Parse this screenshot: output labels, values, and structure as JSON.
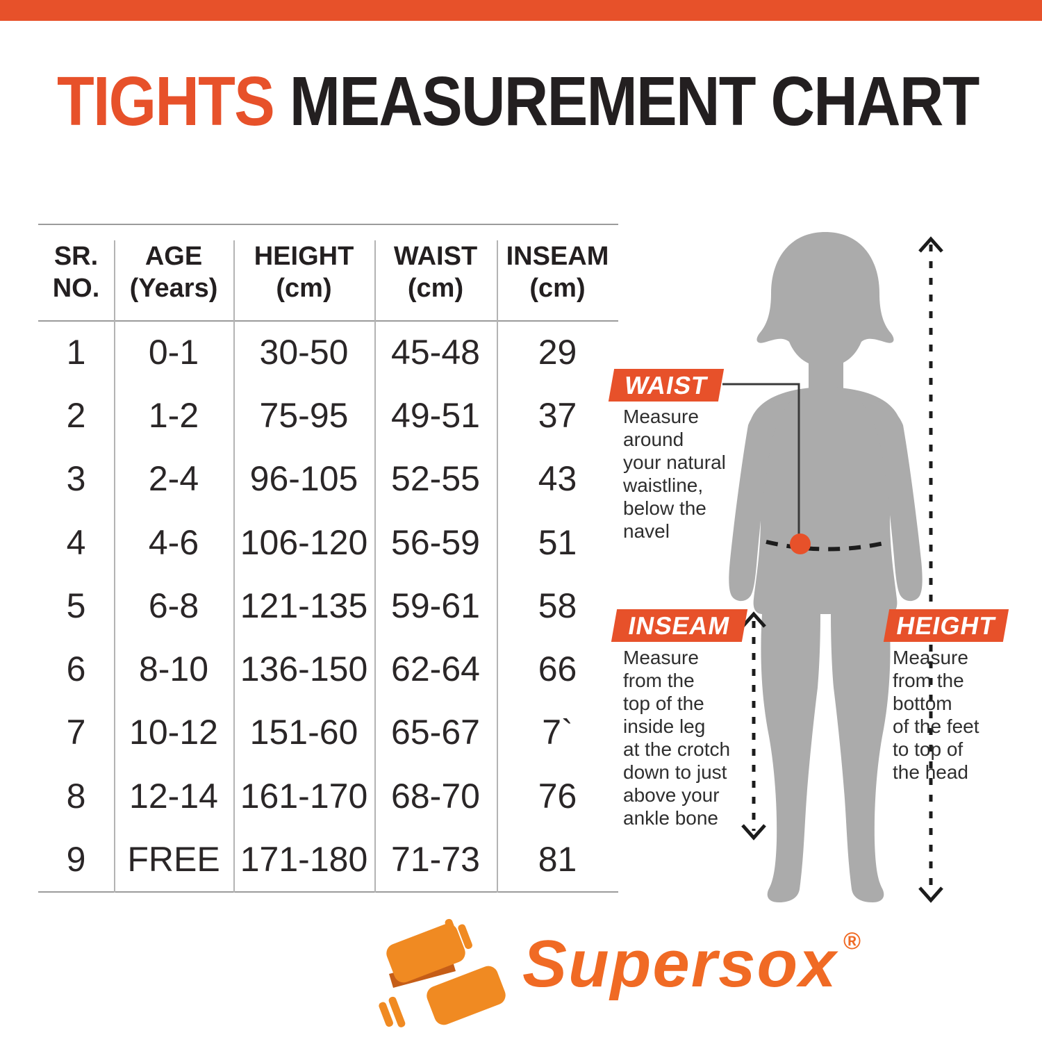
{
  "page": {
    "title_accent": "TIGHTS",
    "title_rest": " MEASUREMENT CHART"
  },
  "table": {
    "headers": [
      "SR.\nNO.",
      "AGE\n(Years)",
      "HEIGHT\n(cm)",
      "WAIST\n(cm)",
      "INSEAM\n(cm)"
    ],
    "rows": [
      [
        "1",
        "0-1",
        "30-50",
        "45-48",
        "29"
      ],
      [
        "2",
        "1-2",
        "75-95",
        "49-51",
        "37"
      ],
      [
        "3",
        "2-4",
        "96-105",
        "52-55",
        "43"
      ],
      [
        "4",
        "4-6",
        "106-120",
        "56-59",
        "51"
      ],
      [
        "5",
        "6-8",
        "121-135",
        "59-61",
        "58"
      ],
      [
        "6",
        "8-10",
        "136-150",
        "62-64",
        "66"
      ],
      [
        "7",
        "10-12",
        "151-60",
        "65-67",
        "7`"
      ],
      [
        "8",
        "12-14",
        "161-170",
        "68-70",
        "76"
      ],
      [
        "9",
        "FREE",
        "171-180",
        "71-73",
        "81"
      ]
    ]
  },
  "annotations": {
    "waist": {
      "label": "WAIST",
      "description": "Measure\naround\nyour natural\nwaistline,\nbelow the\nnavel"
    },
    "inseam": {
      "label": "INSEAM",
      "description": "Measure\nfrom the\ntop of the\ninside leg\nat the crotch\ndown to just\nabove your\nankle bone"
    },
    "height": {
      "label": "HEIGHT",
      "description": "Measure\nfrom the\nbottom\nof the feet\nto top of\nthe head"
    }
  },
  "logo": {
    "brand": "Supersox",
    "registered": "®"
  },
  "colors": {
    "accent_orange": "#e7512a",
    "silhouette_gray": "#ababab",
    "logo_orange": "#f08a22",
    "logo_text_orange": "#f06a24",
    "text_dark": "#231f20",
    "rule_gray": "#9b9b9b"
  },
  "chart_data": {
    "type": "table",
    "title": "TIGHTS MEASUREMENT CHART",
    "columns": [
      "SR. NO.",
      "AGE (Years)",
      "HEIGHT (cm)",
      "WAIST (cm)",
      "INSEAM (cm)"
    ],
    "rows": [
      [
        "1",
        "0-1",
        "30-50",
        "45-48",
        "29"
      ],
      [
        "2",
        "1-2",
        "75-95",
        "49-51",
        "37"
      ],
      [
        "3",
        "2-4",
        "96-105",
        "52-55",
        "43"
      ],
      [
        "4",
        "4-6",
        "106-120",
        "56-59",
        "51"
      ],
      [
        "5",
        "6-8",
        "121-135",
        "59-61",
        "58"
      ],
      [
        "6",
        "8-10",
        "136-150",
        "62-64",
        "66"
      ],
      [
        "7",
        "10-12",
        "151-60",
        "65-67",
        "7`"
      ],
      [
        "8",
        "12-14",
        "161-170",
        "68-70",
        "76"
      ],
      [
        "9",
        "FREE",
        "171-180",
        "71-73",
        "81"
      ]
    ]
  }
}
